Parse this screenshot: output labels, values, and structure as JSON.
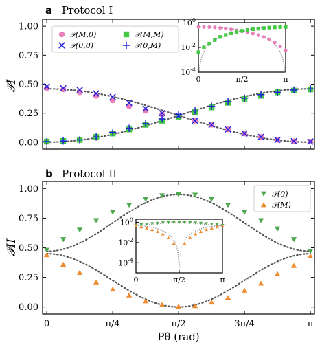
{
  "chart_data": [
    {
      "id": "a",
      "type": "scatter",
      "panel_label": "a",
      "title": "Protocol I",
      "ylabel": "𝒫I",
      "xlabel": "",
      "xlim": [
        -0.05,
        3.19
      ],
      "ylim": [
        -0.06,
        1.06
      ],
      "yticks": [
        0.0,
        0.25,
        0.5,
        0.75,
        1.0
      ],
      "ytick_labels": [
        "0.00",
        "0.25",
        "0.50",
        "0.75",
        "1.00"
      ],
      "x": [
        0.0,
        0.1963,
        0.3927,
        0.589,
        0.7854,
        0.9817,
        1.1781,
        1.3744,
        1.5708,
        1.7671,
        1.9635,
        2.1598,
        2.3562,
        2.5525,
        2.7489,
        2.9452,
        3.1416
      ],
      "legend_position": "upper-left",
      "series": [
        {
          "name": "𝒫(M,0)",
          "marker": "circle",
          "color": "#e87ebc",
          "values": [
            0.465,
            0.455,
            0.43,
            0.4,
            0.36,
            0.31,
            0.27,
            0.24,
            0.22,
            0.185,
            0.15,
            0.11,
            0.075,
            0.045,
            0.02,
            0.008,
            0.005
          ]
        },
        {
          "name": "𝒫(M,M)",
          "marker": "square",
          "color": "#44c944",
          "values": [
            0.005,
            0.01,
            0.02,
            0.045,
            0.075,
            0.11,
            0.15,
            0.185,
            0.22,
            0.26,
            0.3,
            0.34,
            0.375,
            0.4,
            0.43,
            0.445,
            0.455
          ]
        },
        {
          "name": "𝒫(0,0)",
          "marker": "x",
          "color": "#2222dd",
          "values": [
            0.48,
            0.465,
            0.45,
            0.42,
            0.39,
            0.34,
            0.29,
            0.25,
            0.23,
            0.185,
            0.15,
            0.11,
            0.075,
            0.045,
            0.02,
            0.008,
            0.005
          ]
        },
        {
          "name": "𝒫(0,M)",
          "marker": "plus",
          "color": "#2222dd",
          "values": [
            0.005,
            0.01,
            0.02,
            0.045,
            0.085,
            0.12,
            0.16,
            0.2,
            0.24,
            0.27,
            0.31,
            0.35,
            0.38,
            0.41,
            0.43,
            0.45,
            0.46
          ]
        }
      ],
      "fit_curves": [
        {
          "style": "dotted",
          "color": "#555555",
          "formula": "0.46*cos^2(x/2)"
        },
        {
          "style": "dotted",
          "color": "#555555",
          "formula": "0.46*sin^2(x/2)"
        }
      ],
      "inset": {
        "type": "scatter",
        "yscale": "log",
        "ylim_exp": [
          -4,
          0
        ],
        "ytick_labels": [
          "10^0",
          "10^-2",
          "10^-4"
        ],
        "xtick_labels": [
          "0",
          "π/2",
          "π"
        ],
        "series": [
          {
            "name": "𝒫(M,0)",
            "marker": "circle",
            "color": "#e87ebc",
            "values": [
              0.46,
              0.455,
              0.44,
              0.42,
              0.38,
              0.34,
              0.29,
              0.24,
              0.2,
              0.17,
              0.13,
              0.1,
              0.07,
              0.045,
              0.025,
              0.012,
              0.006
            ]
          },
          {
            "name": "𝒫(M,M)",
            "marker": "square",
            "color": "#44c944",
            "values": [
              0.004,
              0.01,
              0.02,
              0.04,
              0.07,
              0.1,
              0.14,
              0.18,
              0.22,
              0.26,
              0.3,
              0.33,
              0.37,
              0.4,
              0.42,
              0.44,
              0.45
            ]
          }
        ]
      }
    },
    {
      "id": "b",
      "type": "scatter",
      "panel_label": "b",
      "title": "Protocol II",
      "ylabel": "𝒫II",
      "xlabel": "Pθ (rad)",
      "xlim": [
        -0.05,
        3.19
      ],
      "ylim": [
        -0.06,
        1.06
      ],
      "yticks": [
        0.0,
        0.25,
        0.5,
        0.75,
        1.0
      ],
      "ytick_labels": [
        "0.00",
        "0.25",
        "0.50",
        "0.75",
        "1.00"
      ],
      "xtick_labels": [
        "0",
        "π/4",
        "π/2",
        "3π/4",
        "π"
      ],
      "x": [
        0.0,
        0.1963,
        0.3927,
        0.589,
        0.7854,
        0.9817,
        1.1781,
        1.3744,
        1.5708,
        1.7671,
        1.9635,
        2.1598,
        2.3562,
        2.5525,
        2.7489,
        2.9452,
        3.1416
      ],
      "legend_position": "upper-right",
      "series": [
        {
          "name": "𝒫(0)",
          "marker": "triangle-down",
          "color": "#4fa84f",
          "values": [
            0.48,
            0.57,
            0.65,
            0.73,
            0.8,
            0.86,
            0.91,
            0.94,
            0.95,
            0.945,
            0.91,
            0.86,
            0.8,
            0.73,
            0.66,
            0.57,
            0.47
          ]
        },
        {
          "name": "𝒫(M)",
          "marker": "triangle-up",
          "color": "#f08c30",
          "values": [
            0.44,
            0.36,
            0.29,
            0.21,
            0.15,
            0.1,
            0.05,
            0.02,
            0.005,
            0.01,
            0.04,
            0.08,
            0.14,
            0.2,
            0.28,
            0.35,
            0.43
          ]
        }
      ],
      "fit_curves": [
        {
          "style": "dotted",
          "color": "#555555",
          "formula": "0.47+0.48*sin^2(x)"
        },
        {
          "style": "dotted",
          "color": "#555555",
          "formula": "0.45*cos^2(x)"
        }
      ],
      "inset": {
        "type": "scatter",
        "yscale": "log",
        "ylim_exp": [
          -5,
          0.3
        ],
        "ytick_labels": [
          "10^0",
          "10^-2",
          "10^-4"
        ],
        "xtick_labels": [
          "0",
          "π/2",
          "π"
        ],
        "series": [
          {
            "name": "𝒫(0)",
            "marker": "triangle-down",
            "color": "#4fa84f",
            "values": [
              0.48,
              0.57,
              0.65,
              0.73,
              0.8,
              0.86,
              0.91,
              0.94,
              0.95,
              0.945,
              0.91,
              0.86,
              0.8,
              0.73,
              0.66,
              0.57,
              0.47
            ]
          },
          {
            "name": "𝒫(M)",
            "marker": "triangle-up",
            "color": "#f08c30",
            "values": [
              0.44,
              0.35,
              0.27,
              0.19,
              0.12,
              0.07,
              0.03,
              0.008,
              0.0,
              0.008,
              0.03,
              0.07,
              0.12,
              0.19,
              0.27,
              0.35,
              0.43
            ]
          }
        ]
      }
    }
  ]
}
